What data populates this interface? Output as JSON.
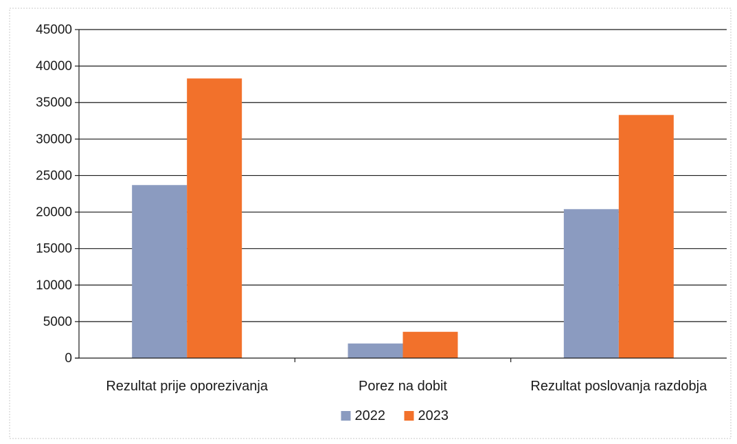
{
  "chart_data": {
    "type": "bar",
    "title": "",
    "xlabel": "",
    "ylabel": "",
    "ylim": [
      0,
      45000
    ],
    "yticks": [
      0,
      5000,
      10000,
      15000,
      20000,
      25000,
      30000,
      35000,
      40000,
      45000
    ],
    "grid": true,
    "legend_position": "bottom",
    "categories": [
      "Rezultat prije oporezivanja",
      "Porez na dobit",
      "Rezultat poslovanja razdobja"
    ],
    "series": [
      {
        "name": "2022",
        "color": "#8b9bc0",
        "values": [
          23700,
          2000,
          20400
        ]
      },
      {
        "name": "2023",
        "color": "#f2712b",
        "values": [
          38300,
          3600,
          33300
        ]
      }
    ]
  }
}
